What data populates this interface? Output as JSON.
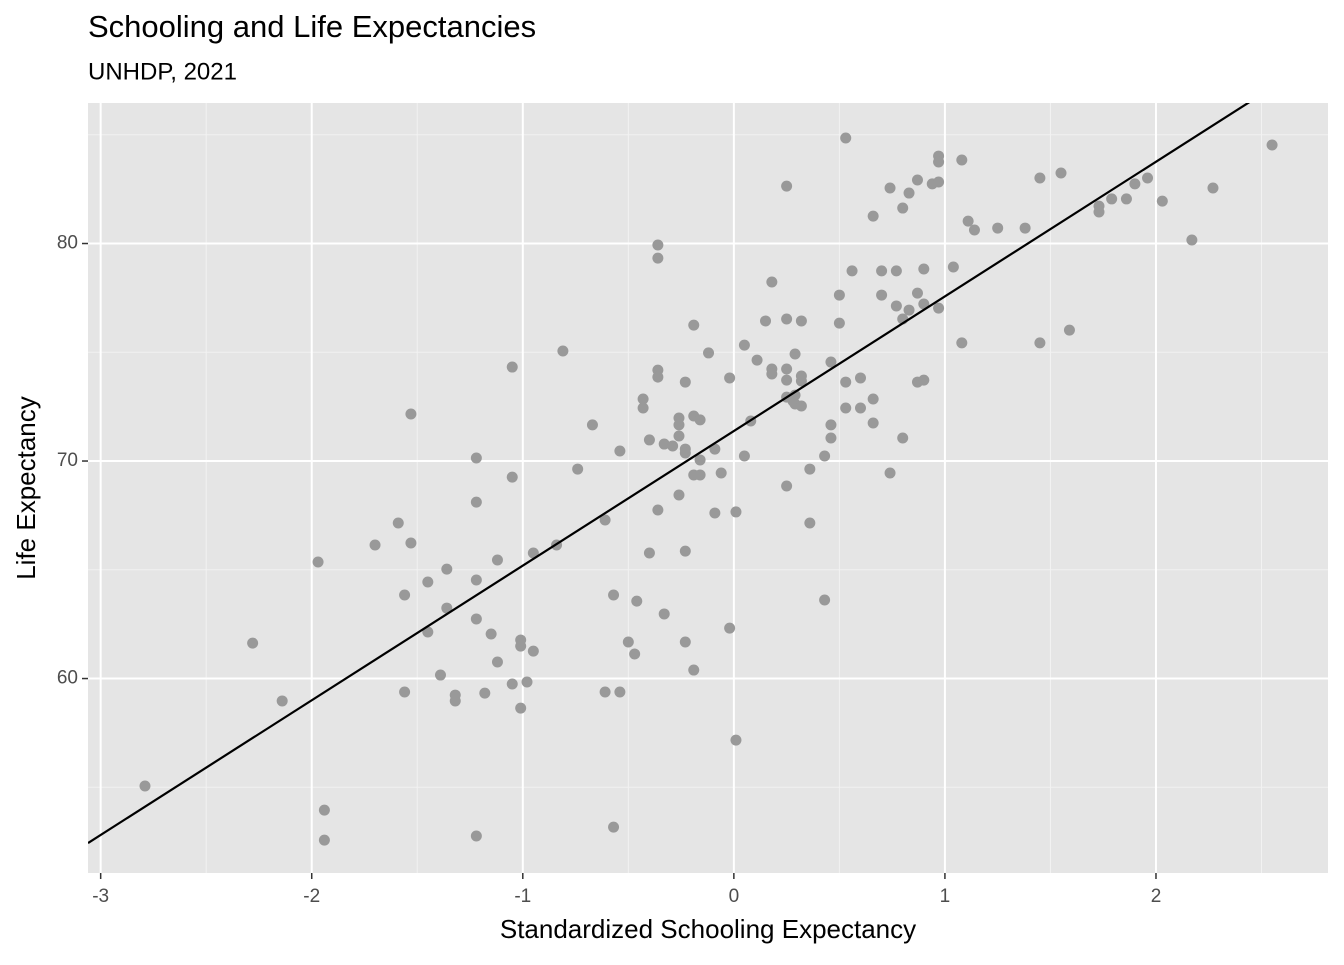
{
  "chart_data": {
    "type": "scatter",
    "title": "Schooling and Life Expectancies",
    "subtitle": "UNHDP, 2021",
    "x_label": "Standardized Schooling Expectancy",
    "y_label": "Life Expectancy",
    "xlim": [
      -3.06,
      2.815
    ],
    "ylim": [
      51.06,
      86.46
    ],
    "xticks": [
      -3,
      -2,
      -1,
      0,
      1,
      2
    ],
    "yticks": [
      60,
      70,
      80
    ],
    "minor_xgrid": [
      -2.5,
      -1.5,
      -0.5,
      0.5,
      1.5,
      2.5
    ],
    "minor_ygrid": [
      55,
      65,
      75,
      85
    ],
    "grid": true,
    "point_color": "#999999",
    "fit": {
      "intercept": 71.38,
      "slope": 6.19,
      "color": "#000000"
    },
    "x": [
      -2.79,
      -2.28,
      -2.14,
      -1.97,
      -1.94,
      -1.94,
      -1.7,
      -1.59,
      -1.56,
      -1.56,
      -1.53,
      -1.53,
      -1.45,
      -1.45,
      -1.39,
      -1.36,
      -1.36,
      -1.32,
      -1.32,
      -1.22,
      -1.22,
      -1.22,
      -1.22,
      -1.22,
      -1.18,
      -1.15,
      -1.12,
      -1.12,
      -1.05,
      -1.05,
      -1.05,
      -1.01,
      -1.01,
      -1.01,
      -0.98,
      -0.95,
      -0.95,
      -0.84,
      -0.81,
      -0.74,
      -0.67,
      -0.61,
      -0.61,
      -0.57,
      -0.57,
      -0.54,
      -0.54,
      -0.5,
      -0.47,
      -0.46,
      -0.43,
      -0.43,
      -0.4,
      -0.4,
      -0.36,
      -0.36,
      -0.36,
      -0.36,
      -0.36,
      -0.33,
      -0.33,
      -0.29,
      -0.26,
      -0.26,
      -0.26,
      -0.26,
      -0.23,
      -0.23,
      -0.23,
      -0.23,
      -0.23,
      -0.19,
      -0.19,
      -0.19,
      -0.19,
      -0.16,
      -0.16,
      -0.16,
      -0.12,
      -0.09,
      -0.09,
      -0.06,
      -0.02,
      -0.02,
      0.01,
      0.01,
      0.05,
      0.05,
      0.08,
      0.11,
      0.15,
      0.18,
      0.18,
      0.18,
      0.25,
      0.25,
      0.25,
      0.25,
      0.25,
      0.25,
      0.28,
      0.29,
      0.29,
      0.29,
      0.32,
      0.32,
      0.32,
      0.32,
      0.36,
      0.36,
      0.43,
      0.43,
      0.46,
      0.46,
      0.46,
      0.5,
      0.5,
      0.53,
      0.53,
      0.53,
      0.56,
      0.6,
      0.6,
      0.66,
      0.66,
      0.66,
      0.7,
      0.7,
      0.74,
      0.74,
      0.77,
      0.77,
      0.8,
      0.8,
      0.8,
      0.83,
      0.83,
      0.87,
      0.87,
      0.87,
      0.9,
      0.9,
      0.9,
      0.94,
      0.97,
      0.97,
      0.97,
      0.97,
      1.04,
      1.08,
      1.08,
      1.11,
      1.14,
      1.25,
      1.38,
      1.45,
      1.45,
      1.55,
      1.59,
      1.73,
      1.73,
      1.79,
      1.86,
      1.9,
      1.96,
      2.03,
      2.17,
      2.27,
      2.55
    ],
    "y": [
      55.06,
      61.63,
      58.97,
      65.36,
      53.95,
      52.57,
      66.14,
      67.15,
      63.84,
      59.38,
      72.16,
      66.23,
      64.44,
      62.14,
      60.16,
      65.03,
      63.24,
      59.24,
      58.97,
      70.14,
      68.11,
      64.53,
      62.74,
      52.76,
      59.33,
      62.05,
      65.45,
      60.76,
      74.32,
      69.26,
      59.75,
      61.77,
      61.49,
      58.64,
      59.84,
      65.77,
      61.26,
      66.14,
      75.06,
      69.63,
      71.66,
      67.29,
      59.38,
      63.84,
      53.17,
      70.46,
      59.38,
      61.68,
      61.13,
      63.56,
      72.85,
      72.44,
      70.97,
      65.77,
      79.93,
      79.33,
      74.18,
      73.86,
      67.75,
      70.78,
      62.97,
      70.69,
      71.98,
      71.66,
      71.15,
      68.44,
      73.63,
      70.55,
      70.37,
      65.86,
      61.68,
      76.25,
      72.07,
      69.36,
      60.39,
      71.89,
      70.05,
      69.36,
      74.97,
      70.55,
      67.61,
      69.45,
      73.82,
      62.32,
      67.66,
      57.17,
      75.33,
      70.23,
      71.84,
      74.64,
      76.44,
      78.23,
      74.23,
      74.0,
      82.64,
      76.53,
      74.23,
      73.72,
      72.94,
      68.85,
      72.76,
      74.92,
      73.03,
      72.62,
      76.44,
      73.91,
      73.68,
      72.53,
      69.63,
      67.15,
      70.23,
      63.61,
      74.55,
      71.66,
      71.06,
      77.63,
      76.34,
      84.85,
      73.63,
      72.44,
      78.74,
      73.82,
      72.44,
      81.26,
      72.85,
      71.75,
      78.74,
      77.63,
      82.55,
      69.45,
      78.74,
      77.13,
      81.63,
      76.53,
      71.06,
      82.32,
      76.94,
      82.92,
      77.72,
      73.63,
      78.83,
      77.22,
      73.72,
      82.74,
      84.02,
      83.75,
      82.83,
      77.03,
      78.92,
      83.84,
      75.43,
      81.03,
      80.62,
      80.71,
      80.71,
      83.01,
      75.43,
      83.24,
      76.02,
      81.72,
      81.45,
      82.05,
      82.05,
      82.74,
      83.01,
      81.95,
      80.16,
      82.55,
      84.53
    ]
  }
}
